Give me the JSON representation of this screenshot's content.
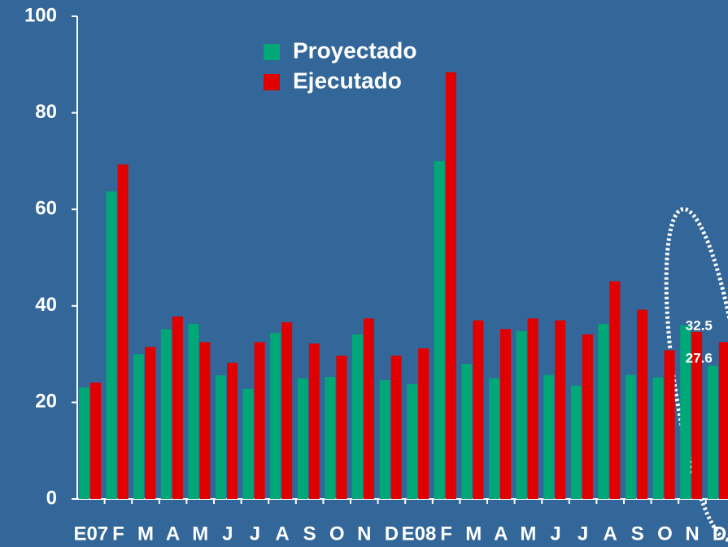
{
  "chart_data": {
    "type": "bar",
    "categories": [
      "E07",
      "F",
      "M",
      "A",
      "M",
      "J",
      "J",
      "A",
      "S",
      "O",
      "N",
      "D",
      "E08",
      "F",
      "M",
      "A",
      "M",
      "J",
      "J",
      "A",
      "S",
      "O",
      "N",
      "D"
    ],
    "series": [
      {
        "name": "Proyectado",
        "color": "#00a878",
        "values": [
          23.1,
          63.7,
          30.0,
          35.2,
          36.3,
          25.6,
          22.8,
          34.4,
          25.0,
          25.3,
          34.1,
          24.6,
          23.8,
          70.0,
          28.0,
          25.0,
          34.8,
          25.7,
          23.5,
          36.3,
          25.7,
          25.2,
          36.0,
          27.6
        ]
      },
      {
        "name": "Ejecutado",
        "color": "#e00000",
        "values": [
          24.1,
          69.3,
          31.5,
          37.8,
          32.5,
          28.2,
          32.5,
          36.6,
          32.2,
          29.7,
          37.4,
          29.7,
          31.2,
          88.4,
          37.0,
          35.2,
          37.4,
          37.0,
          34.1,
          45.1,
          39.2,
          30.8,
          34.6,
          32.5
        ]
      }
    ],
    "ylim": [
      0,
      100
    ],
    "yticks": [
      0,
      20,
      40,
      60,
      80,
      100
    ],
    "grid": false
  }
}
